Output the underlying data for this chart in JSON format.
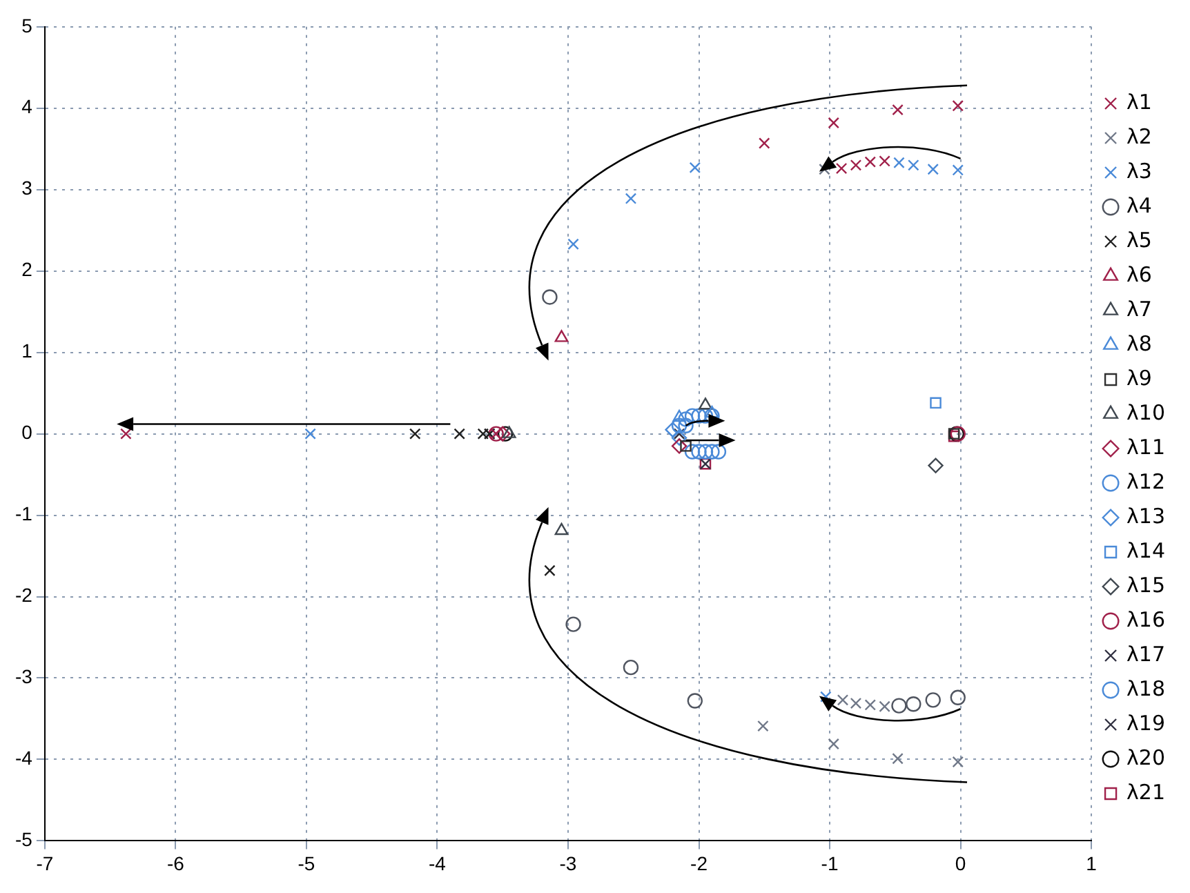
{
  "chart_data": {
    "type": "scatter",
    "xlim": [
      -7,
      1
    ],
    "ylim": [
      -5,
      5
    ],
    "xticks": [
      -7,
      -6,
      -5,
      -4,
      -3,
      -2,
      -1,
      0,
      1
    ],
    "yticks": [
      -5,
      -4,
      -3,
      -2,
      -1,
      0,
      1,
      2,
      3,
      4,
      5
    ],
    "grid": true,
    "legend": "right",
    "series": [
      {
        "name": "λ1",
        "color": "#a0204a",
        "marker": "cross",
        "x": [
          -6.38,
          -3.55,
          -1.5,
          -0.97,
          -0.48,
          -0.02,
          -0.91,
          -0.8,
          -0.69,
          -0.58
        ],
        "values": [
          0,
          0,
          3.57,
          3.82,
          3.98,
          4.03,
          3.26,
          3.3,
          3.34,
          3.35
        ]
      },
      {
        "name": "λ2",
        "color": "#707888",
        "marker": "cross",
        "x": [
          -1.04,
          -0.9,
          -0.8,
          -0.69,
          -0.58,
          -1.51,
          -0.97,
          -0.48,
          -0.02
        ],
        "values": [
          3.25,
          -3.27,
          -3.31,
          -3.33,
          -3.35,
          -3.59,
          -3.81,
          -3.99,
          -4.03
        ]
      },
      {
        "name": "λ3",
        "color": "#4a8ad8",
        "marker": "cross",
        "x": [
          -4.97,
          -2.96,
          -2.52,
          -2.03,
          -0.47,
          -0.36,
          -0.21,
          -0.02,
          -1.03
        ],
        "values": [
          0,
          2.33,
          2.89,
          3.27,
          3.33,
          3.3,
          3.25,
          3.24,
          -3.23
        ]
      },
      {
        "name": "λ4",
        "color": "#505560",
        "marker": "circle",
        "x": [
          -3.14,
          -2.96,
          -2.52,
          -2.03,
          -0.47,
          -0.36,
          -0.21,
          -0.02
        ],
        "values": [
          1.68,
          -2.34,
          -2.87,
          -3.28,
          -3.34,
          -3.32,
          -3.27,
          -3.24
        ]
      },
      {
        "name": "λ5",
        "color": "#202020",
        "marker": "cross",
        "x": [
          -4.17,
          -3.83,
          -3.14,
          -3.65,
          -3.6
        ],
        "values": [
          0,
          0,
          -1.68,
          0,
          0
        ]
      },
      {
        "name": "λ6",
        "color": "#a0204a",
        "marker": "triangle",
        "x": [
          -3.05
        ],
        "values": [
          1.18
        ]
      },
      {
        "name": "λ7",
        "color": "#404850",
        "marker": "triangle",
        "x": [
          -3.05,
          -3.45
        ],
        "values": [
          -1.19,
          0
        ]
      },
      {
        "name": "λ8",
        "color": "#4a8ad8",
        "marker": "triangle",
        "x": [
          -2.15,
          -1.9
        ],
        "values": [
          0.2,
          0.25
        ]
      },
      {
        "name": "λ9",
        "color": "#303030",
        "marker": "square",
        "x": [
          -2.1,
          -0.05
        ],
        "values": [
          -0.15,
          0
        ]
      },
      {
        "name": "λ10",
        "color": "#404850",
        "marker": "triangle",
        "x": [
          -1.95
        ],
        "values": [
          0.35
        ]
      },
      {
        "name": "λ11",
        "color": "#a0204a",
        "marker": "diamond",
        "x": [
          -3.5,
          -2.15
        ],
        "values": [
          0,
          -0.15
        ]
      },
      {
        "name": "λ12",
        "color": "#4a8ad8",
        "marker": "circle",
        "x": [
          -2.15,
          -2.1,
          -2.05,
          -2.0,
          -1.95,
          -1.9,
          -2.05,
          -2.0,
          -1.95,
          -1.9,
          -1.85
        ],
        "values": [
          0.1,
          0.18,
          0.22,
          0.22,
          0.22,
          0.22,
          -0.22,
          -0.22,
          -0.22,
          -0.22,
          -0.22
        ]
      },
      {
        "name": "λ13",
        "color": "#4a8ad8",
        "marker": "diamond",
        "x": [
          -2.2,
          -2.15
        ],
        "values": [
          0.05,
          -0.05
        ]
      },
      {
        "name": "λ14",
        "color": "#4a8ad8",
        "marker": "square",
        "x": [
          -0.19
        ],
        "values": [
          0.38
        ]
      },
      {
        "name": "λ15",
        "color": "#404850",
        "marker": "diamond",
        "x": [
          -0.19
        ],
        "values": [
          -0.39
        ]
      },
      {
        "name": "λ16",
        "color": "#a0204a",
        "marker": "circle",
        "x": [
          -0.02,
          -3.55
        ],
        "values": [
          0,
          0
        ]
      },
      {
        "name": "λ17",
        "color": "#303040",
        "marker": "cross",
        "x": [
          -1.95
        ],
        "values": [
          -0.37
        ]
      },
      {
        "name": "λ18",
        "color": "#4a8ad8",
        "marker": "circle",
        "x": [
          -2.1
        ],
        "values": [
          0.1
        ]
      },
      {
        "name": "λ19",
        "color": "#303040",
        "marker": "cross",
        "x": [
          -3.6,
          -2.15
        ],
        "values": [
          0,
          0
        ]
      },
      {
        "name": "λ20",
        "color": "#101010",
        "marker": "circle",
        "x": [
          -0.03,
          -3.48
        ],
        "values": [
          0,
          0
        ]
      },
      {
        "name": "λ21",
        "color": "#a0204a",
        "marker": "square",
        "x": [
          -0.05,
          -1.95
        ],
        "values": [
          -0.03,
          -0.37
        ]
      }
    ]
  }
}
